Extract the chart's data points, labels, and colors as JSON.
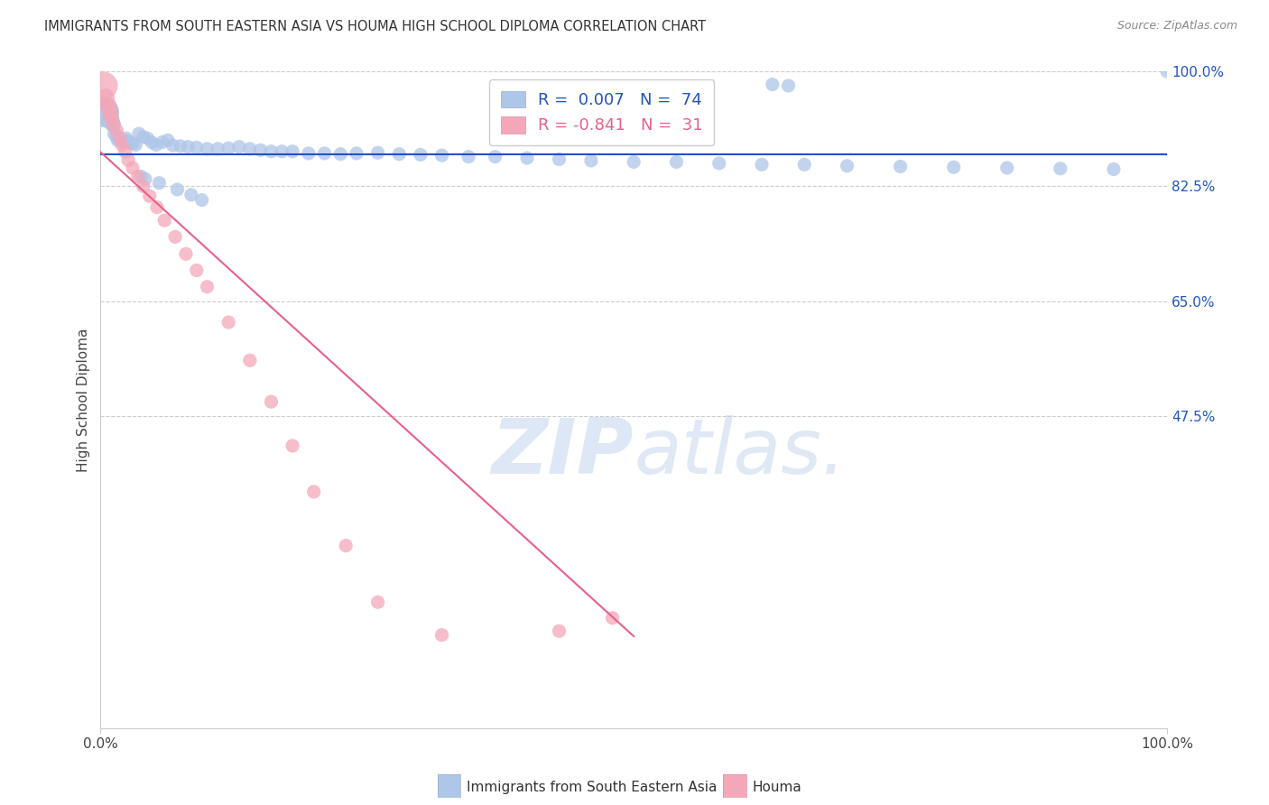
{
  "title": "IMMIGRANTS FROM SOUTH EASTERN ASIA VS HOUMA HIGH SCHOOL DIPLOMA CORRELATION CHART",
  "source": "Source: ZipAtlas.com",
  "ylabel": "High School Diploma",
  "xlim": [
    0,
    1
  ],
  "ylim": [
    0,
    1
  ],
  "blue_R": 0.007,
  "blue_N": 74,
  "pink_R": -0.841,
  "pink_N": 31,
  "blue_color": "#aec6e8",
  "pink_color": "#f4a7b9",
  "blue_line_color": "#2255bb",
  "pink_line_color": "#e8608a",
  "legend_blue_text_color": "#2255bb",
  "legend_pink_text_color": "#e8608a",
  "watermark_color": "#ccd9ee",
  "background_color": "#ffffff",
  "grid_color": "#cccccc",
  "ytick_labels_right": [
    "100.0%",
    "82.5%",
    "65.0%",
    "47.5%"
  ],
  "ytick_positions_right": [
    1.0,
    0.825,
    0.65,
    0.475
  ],
  "blue_line_y_intercept": 0.874,
  "blue_line_slope": 0.0,
  "pink_line_x0": 0.0,
  "pink_line_y0": 0.877,
  "pink_line_x1": 0.5,
  "pink_line_y1": 0.14,
  "blue_scatter_x": [
    0.003,
    0.004,
    0.005,
    0.006,
    0.007,
    0.008,
    0.009,
    0.01,
    0.011,
    0.012,
    0.013,
    0.015,
    0.016,
    0.018,
    0.02,
    0.022,
    0.024,
    0.026,
    0.028,
    0.03,
    0.033,
    0.036,
    0.04,
    0.044,
    0.048,
    0.052,
    0.058,
    0.063,
    0.068,
    0.075,
    0.082,
    0.09,
    0.1,
    0.11,
    0.12,
    0.13,
    0.14,
    0.15,
    0.16,
    0.17,
    0.18,
    0.195,
    0.21,
    0.225,
    0.24,
    0.26,
    0.28,
    0.3,
    0.32,
    0.345,
    0.37,
    0.4,
    0.43,
    0.46,
    0.5,
    0.54,
    0.58,
    0.62,
    0.66,
    0.7,
    0.75,
    0.8,
    0.85,
    0.9,
    0.95,
    1.0,
    0.63,
    0.645,
    0.038,
    0.042,
    0.055,
    0.072,
    0.085,
    0.095
  ],
  "blue_scatter_y": [
    0.938,
    0.938,
    0.938,
    0.935,
    0.93,
    0.928,
    0.925,
    0.925,
    0.92,
    0.918,
    0.905,
    0.9,
    0.895,
    0.895,
    0.893,
    0.895,
    0.898,
    0.893,
    0.892,
    0.89,
    0.888,
    0.905,
    0.9,
    0.898,
    0.892,
    0.888,
    0.892,
    0.895,
    0.887,
    0.886,
    0.885,
    0.884,
    0.882,
    0.882,
    0.883,
    0.885,
    0.882,
    0.88,
    0.878,
    0.878,
    0.878,
    0.875,
    0.875,
    0.874,
    0.875,
    0.876,
    0.874,
    0.873,
    0.872,
    0.87,
    0.87,
    0.868,
    0.866,
    0.864,
    0.862,
    0.862,
    0.86,
    0.858,
    0.858,
    0.856,
    0.855,
    0.854,
    0.853,
    0.852,
    0.851,
    1.0,
    0.98,
    0.978,
    0.84,
    0.836,
    0.83,
    0.82,
    0.812,
    0.804
  ],
  "blue_scatter_sizes": [
    600,
    500,
    400,
    300,
    250,
    220,
    200,
    180,
    160,
    140,
    130,
    125,
    120,
    120,
    120,
    120,
    120,
    120,
    120,
    120,
    120,
    120,
    120,
    120,
    120,
    120,
    120,
    120,
    120,
    120,
    120,
    120,
    120,
    120,
    120,
    120,
    120,
    120,
    120,
    120,
    120,
    120,
    120,
    120,
    120,
    120,
    120,
    120,
    120,
    120,
    120,
    120,
    120,
    120,
    120,
    120,
    120,
    120,
    120,
    120,
    120,
    120,
    120,
    120,
    120,
    120,
    120,
    120,
    120,
    120,
    120,
    120,
    120,
    120
  ],
  "pink_scatter_x": [
    0.003,
    0.005,
    0.007,
    0.009,
    0.01,
    0.012,
    0.015,
    0.018,
    0.02,
    0.023,
    0.026,
    0.03,
    0.035,
    0.04,
    0.046,
    0.053,
    0.06,
    0.07,
    0.08,
    0.09,
    0.1,
    0.12,
    0.14,
    0.16,
    0.18,
    0.2,
    0.23,
    0.26,
    0.32,
    0.43,
    0.48
  ],
  "pink_scatter_y": [
    0.978,
    0.96,
    0.948,
    0.938,
    0.93,
    0.92,
    0.91,
    0.898,
    0.888,
    0.878,
    0.865,
    0.853,
    0.84,
    0.825,
    0.81,
    0.793,
    0.773,
    0.748,
    0.722,
    0.697,
    0.672,
    0.618,
    0.56,
    0.497,
    0.43,
    0.36,
    0.278,
    0.192,
    0.142,
    0.148,
    0.168
  ],
  "pink_scatter_sizes": [
    500,
    200,
    180,
    160,
    150,
    140,
    130,
    125,
    120,
    120,
    120,
    120,
    120,
    120,
    120,
    120,
    120,
    120,
    120,
    120,
    120,
    120,
    120,
    120,
    120,
    120,
    120,
    120,
    120,
    120,
    120
  ]
}
